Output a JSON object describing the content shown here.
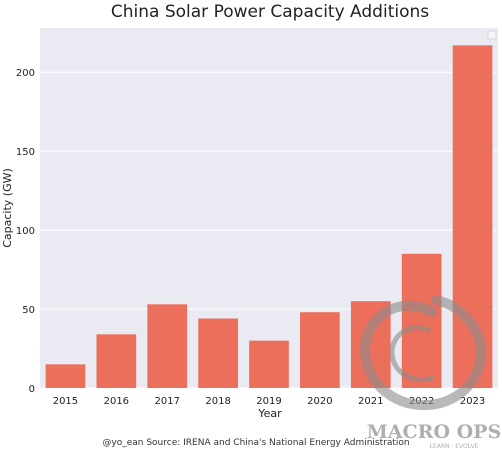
{
  "chart_data": {
    "type": "bar",
    "title": "China Solar Power Capacity Additions",
    "xlabel": "Year",
    "ylabel": "Capacity (GW)",
    "categories": [
      "2015",
      "2016",
      "2017",
      "2018",
      "2019",
      "2020",
      "2021",
      "2022",
      "2023"
    ],
    "values": [
      15,
      34,
      53,
      44,
      30,
      48,
      55,
      85,
      217
    ],
    "ylim": [
      0,
      228
    ],
    "yticks": [
      0,
      50,
      100,
      150,
      200
    ],
    "grid": true,
    "legend": "top-right",
    "bar_color": "#ec6f5c",
    "plot_background": "#eaeaf2",
    "grid_color": "#ffffff"
  },
  "footer": {
    "source": "@yo_ean Source: IRENA and China's National Energy Administration"
  },
  "watermark": {
    "brand": "MACRO OPS",
    "tagline": "LEARN · EVOLVE"
  }
}
